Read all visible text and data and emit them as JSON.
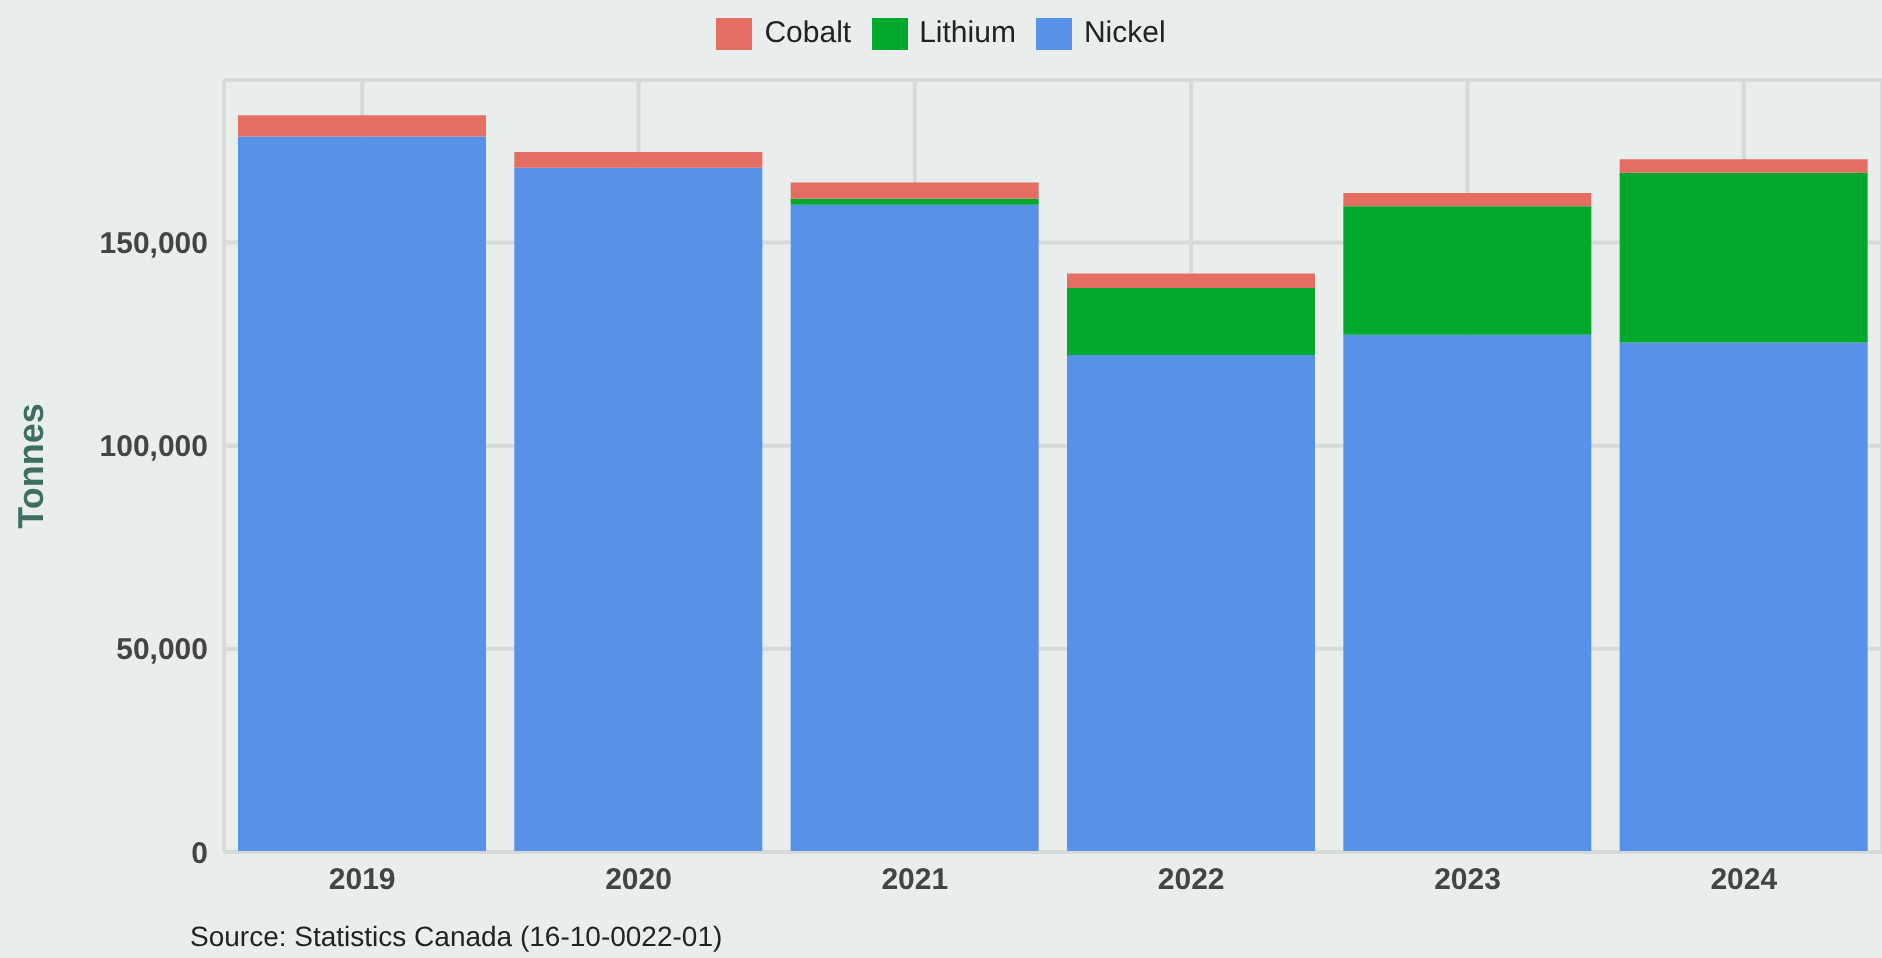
{
  "chart_data": {
    "type": "bar",
    "stacked": true,
    "categories": [
      "2019",
      "2020",
      "2021",
      "2022",
      "2023",
      "2024"
    ],
    "series": [
      {
        "name": "Nickel",
        "color": "#5892e8",
        "values": [
          176100,
          168400,
          159300,
          122300,
          127300,
          125400
        ]
      },
      {
        "name": "Lithium",
        "color": "#00a82d",
        "values": [
          0,
          0,
          1500,
          16500,
          31600,
          41800
        ]
      },
      {
        "name": "Cobalt",
        "color": "#e46e62",
        "values": [
          5200,
          3900,
          4000,
          3600,
          3300,
          3300
        ]
      }
    ],
    "ylabel": "Tonnes",
    "ylim": [
      0,
      190000
    ],
    "yticks": [
      0,
      {
        "value": 50000,
        "label": "50,000"
      },
      {
        "value": 100000,
        "label": "100,000"
      },
      {
        "value": 150000,
        "label": "150,000"
      }
    ],
    "grid": true,
    "legend": "top",
    "annotations": [
      "Source: Statistics Canada (16-10-0022-01)"
    ]
  }
}
